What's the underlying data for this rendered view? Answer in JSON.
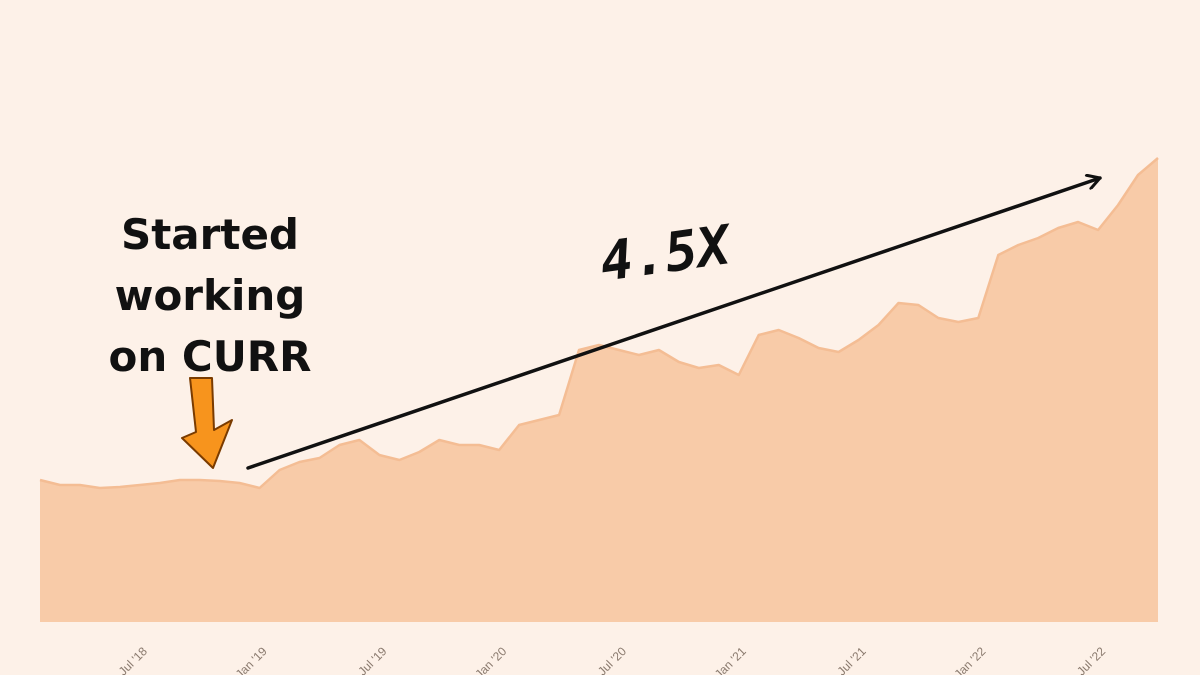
{
  "chart_data": {
    "type": "area",
    "categories": [
      null,
      null,
      null,
      null,
      null,
      "Jul '18",
      null,
      null,
      null,
      null,
      null,
      "Jan '19",
      null,
      null,
      null,
      null,
      null,
      "Jul '19",
      null,
      null,
      null,
      null,
      null,
      "Jan '20",
      null,
      null,
      null,
      null,
      null,
      "Jul '20",
      null,
      null,
      null,
      null,
      null,
      "Jan '21",
      null,
      null,
      null,
      null,
      null,
      "Jul '21",
      null,
      null,
      null,
      null,
      null,
      "Jan '22",
      null,
      null,
      null,
      null,
      null,
      "Jul '22",
      null,
      null,
      null
    ],
    "values": [
      142,
      137,
      137,
      134,
      135,
      137,
      139,
      142,
      142,
      141,
      139,
      134,
      152,
      160,
      164,
      177,
      182,
      167,
      162,
      170,
      182,
      177,
      177,
      172,
      197,
      202,
      207,
      272,
      277,
      272,
      267,
      272,
      260,
      254,
      257,
      247,
      287,
      292,
      284,
      274,
      270,
      282,
      297,
      319,
      317,
      304,
      300,
      304,
      367,
      377,
      384,
      394,
      400,
      392,
      417,
      447,
      464
    ],
    "color": "#f8cba8",
    "line_color": "#f4bd94",
    "ylim": [
      0,
      480
    ],
    "annotations": [
      "Started working on CURR",
      "4.5X"
    ]
  }
}
